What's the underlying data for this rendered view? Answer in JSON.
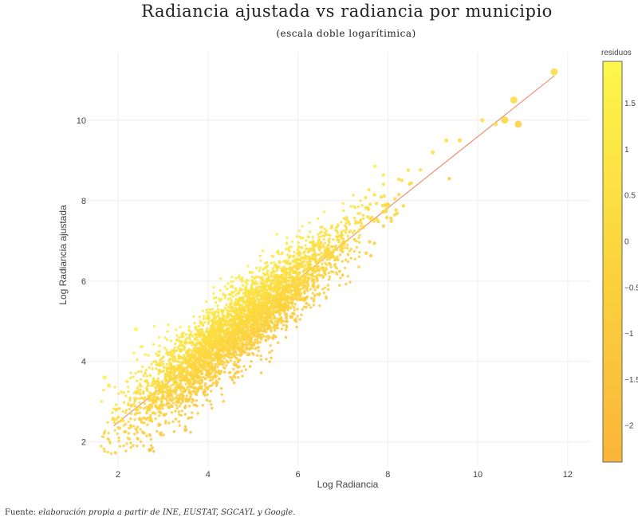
{
  "chart_data": {
    "type": "scatter",
    "title": "Radiancia ajustada vs radiancia por municipio",
    "subtitle": "(escala doble logarítimica)",
    "xlabel": "Log Radiancia",
    "ylabel": "Log Radiancia ajustada",
    "xlim": [
      1.2,
      12.5
    ],
    "ylim": [
      1.4,
      11.7
    ],
    "x_ticks": [
      2,
      4,
      6,
      8,
      10,
      12
    ],
    "y_ticks": [
      2,
      4,
      6,
      8,
      10
    ],
    "grid": true,
    "legend": "colorbar-right",
    "reference_line": {
      "x": [
        1.9,
        11.7
      ],
      "y": [
        2.4,
        11.1
      ],
      "color": "#f08a70"
    },
    "point_count_estimate": 4200,
    "marker_color_range": [
      "#fdb431",
      "#fcf24a"
    ],
    "colorbar": {
      "title": "residuos",
      "range": [
        -2.4,
        1.95
      ],
      "ticks": [
        1.5,
        1,
        0.5,
        0,
        -0.5,
        -1,
        -1.5,
        -2
      ],
      "tick_labels": [
        "1.5",
        "1",
        "0.5",
        "0",
        "−0.5",
        "−1",
        "−1.5",
        "−2"
      ],
      "colors": [
        "#fcf74b",
        "#fbd43d",
        "#fbb53a"
      ]
    },
    "notable_points": [
      {
        "x": 11.7,
        "y": 11.2
      },
      {
        "x": 10.8,
        "y": 10.5
      },
      {
        "x": 10.9,
        "y": 9.9
      },
      {
        "x": 10.6,
        "y": 10.0
      },
      {
        "x": 10.4,
        "y": 9.9
      },
      {
        "x": 10.1,
        "y": 10.0
      },
      {
        "x": 9.6,
        "y": 9.5
      },
      {
        "x": 9.3,
        "y": 9.5
      },
      {
        "x": 9.0,
        "y": 9.2
      },
      {
        "x": 1.7,
        "y": 3.6
      },
      {
        "x": 1.8,
        "y": 3.4
      },
      {
        "x": 2.7,
        "y": 1.8
      },
      {
        "x": 2.4,
        "y": 4.8
      },
      {
        "x": 3.5,
        "y": 2.3
      }
    ]
  },
  "source": {
    "prefix": "Fuente: ",
    "text": "elaboración propia a partir de INE, EUSTAT, SGCAYL y Google."
  }
}
